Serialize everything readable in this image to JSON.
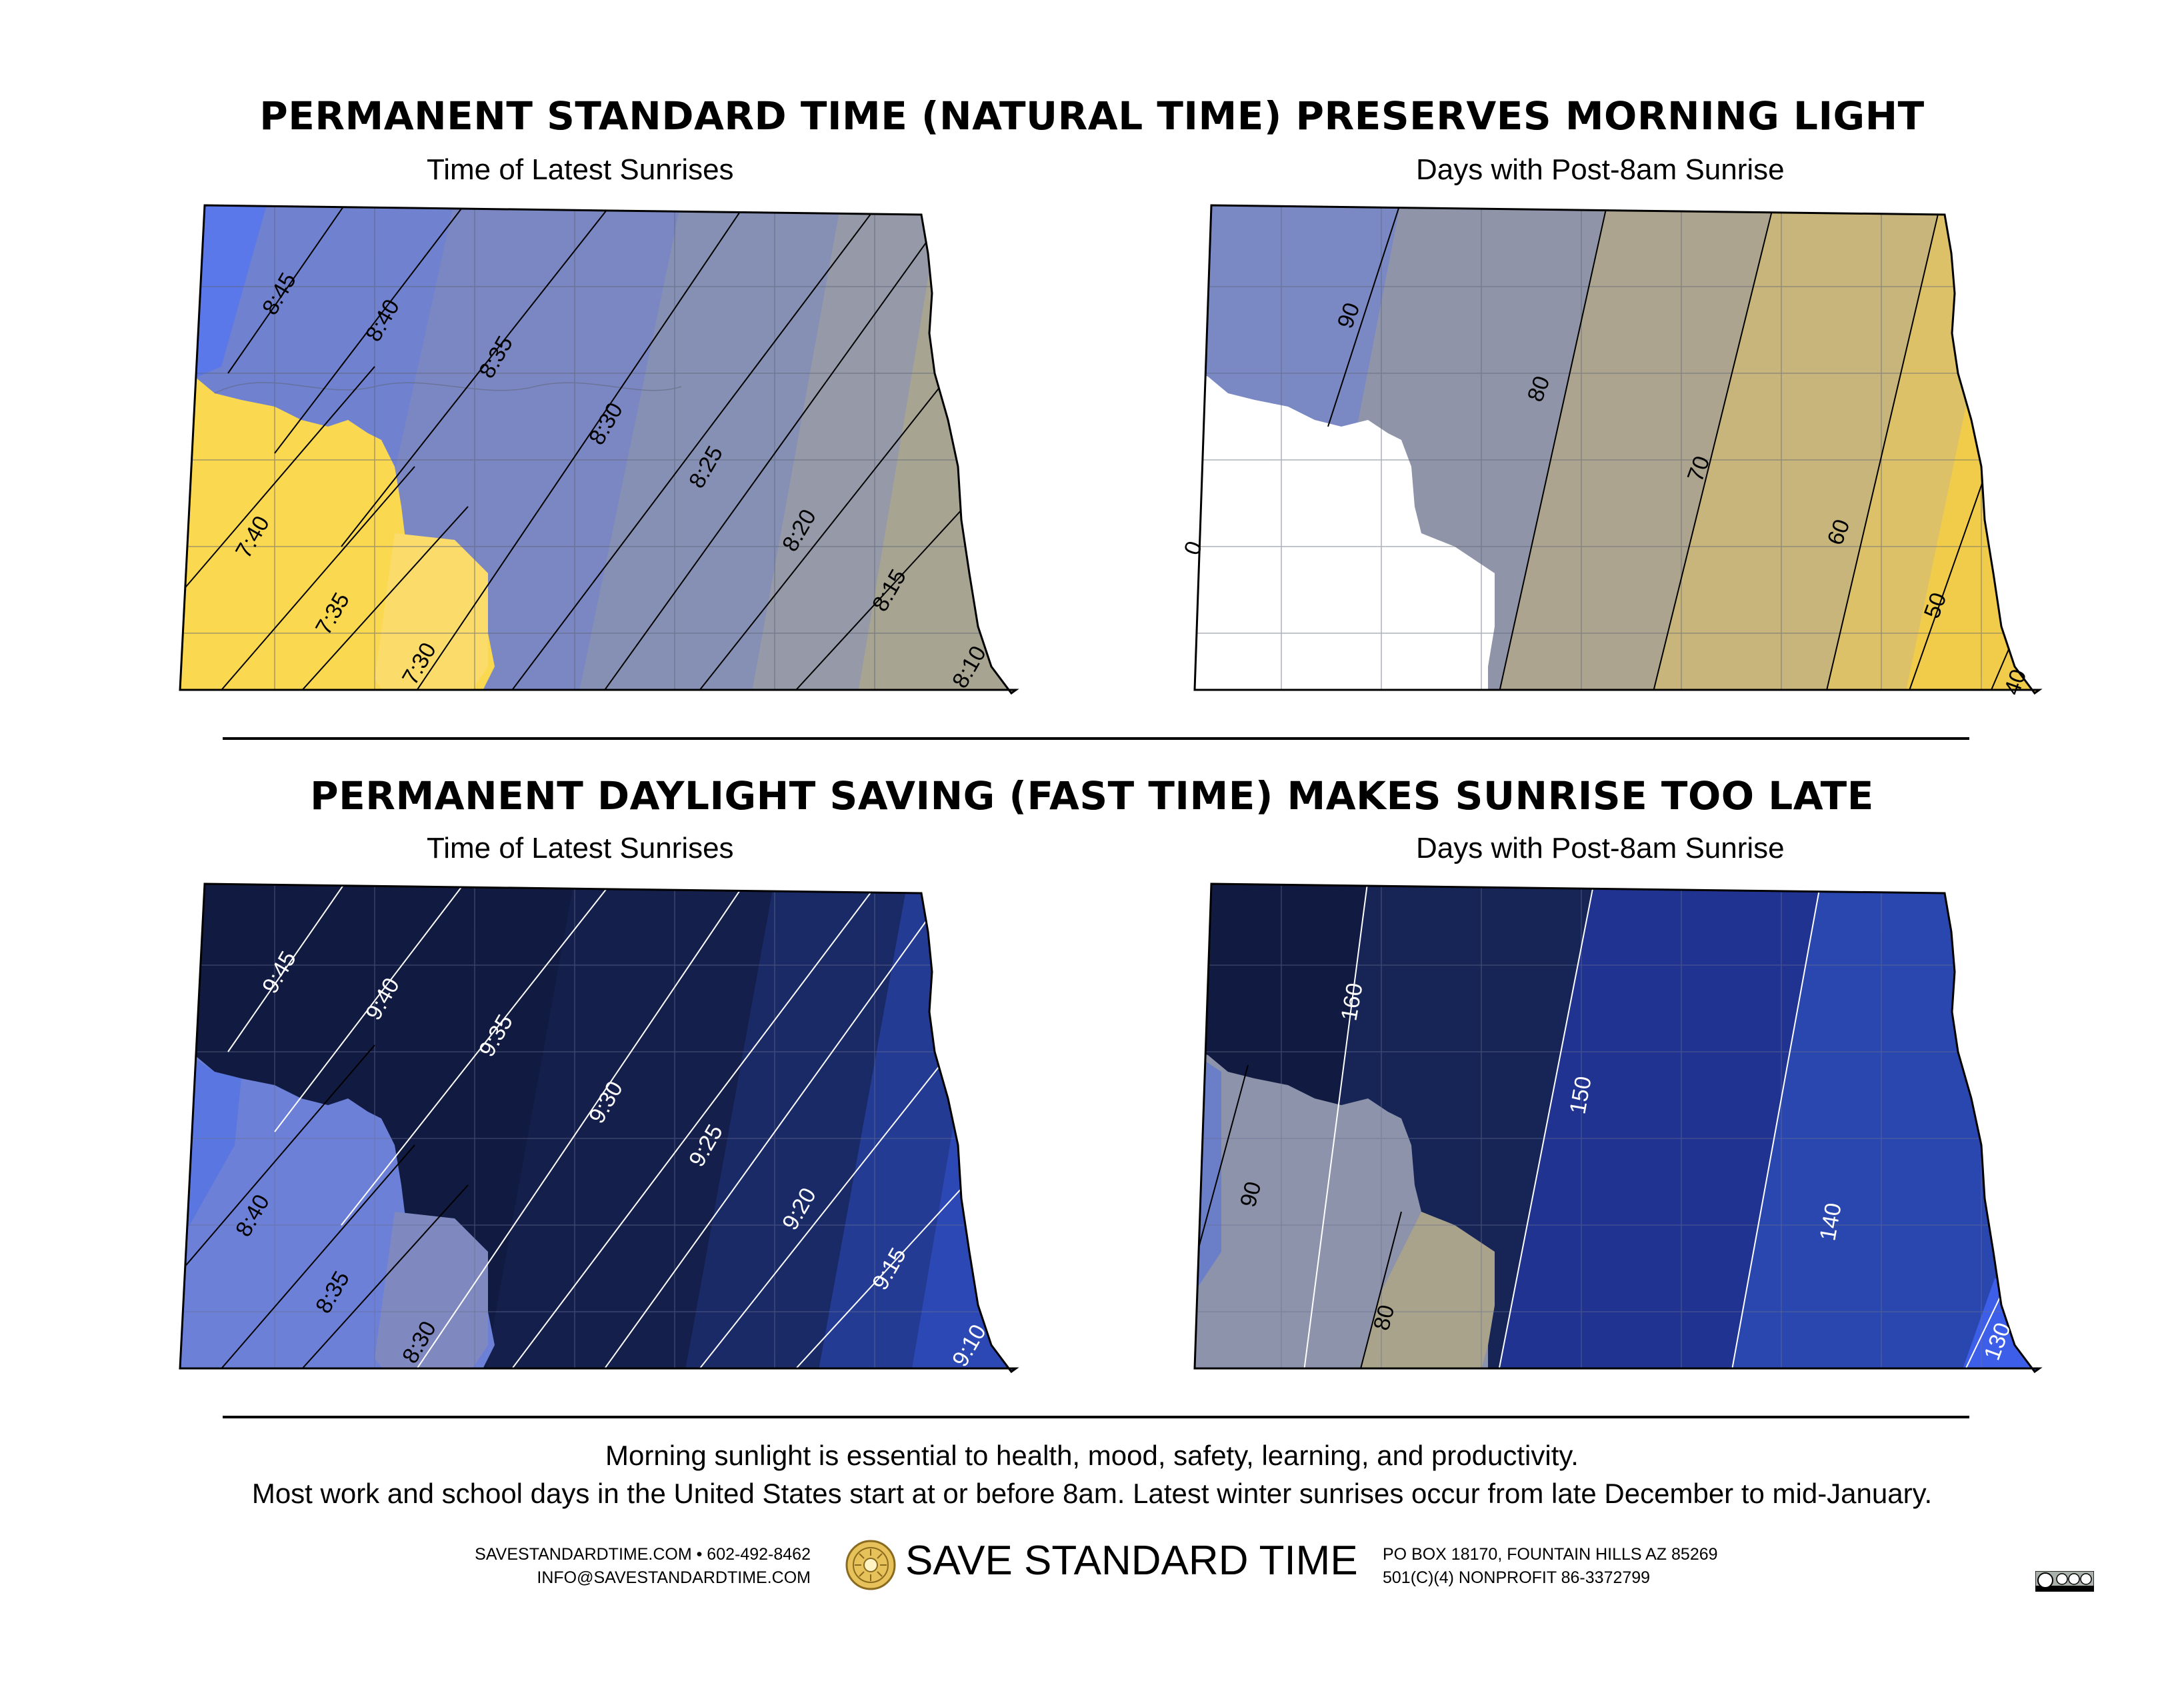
{
  "sections": [
    {
      "title": "PERMANENT STANDARD TIME (NATURAL TIME) PRESERVES MORNING LIGHT",
      "left_map": {
        "subtitle": "Time of Latest Sunrises",
        "contours": [
          "8:45",
          "8:40",
          "8:35",
          "8:30",
          "8:25",
          "8:20",
          "8:15",
          "8:10",
          "7:40",
          "7:35",
          "7:30"
        ]
      },
      "right_map": {
        "subtitle": "Days with Post-8am Sunrise",
        "contours": [
          "90",
          "80",
          "70",
          "60",
          "50",
          "40",
          "0"
        ]
      }
    },
    {
      "title": "PERMANENT DAYLIGHT SAVING (FAST TIME) MAKES SUNRISE TOO LATE",
      "left_map": {
        "subtitle": "Time of Latest Sunrises",
        "contours": [
          "9:45",
          "9:40",
          "9:35",
          "9:30",
          "9:25",
          "9:20",
          "9:15",
          "9:10",
          "8:40",
          "8:35",
          "8:30"
        ]
      },
      "right_map": {
        "subtitle": "Days with Post-8am Sunrise",
        "contours": [
          "160",
          "150",
          "140",
          "130",
          "90",
          "80"
        ]
      }
    }
  ],
  "footnote": {
    "line1": "Morning sunlight is essential to health, mood, safety, learning, and productivity.",
    "line2": "Most work and school days in the United States start at or before 8am. Latest winter sunrises occur from late December to mid-January."
  },
  "footer": {
    "contact_line1": "SAVESTANDARDTIME.COM • 602-492-8462",
    "contact_line2": "INFO@SAVESTANDARDTIME.COM",
    "brand": "SAVE STANDARD TIME",
    "address_line1": "PO BOX 18170, FOUNTAIN HILLS AZ 85269",
    "address_line2": "501(C)(4) NONPROFIT 86-3372799"
  },
  "colors": {
    "yellow": "#f9d54a",
    "gold_light": "#fbd965",
    "tan": "#aba58c",
    "grey_blue": "#8c94b0",
    "periwinkle": "#6a80d0",
    "bright_blue": "#4f6ff0",
    "navy": "#111a40",
    "deep_navy": "#172456",
    "royal": "#2a47b0",
    "white": "#ffffff"
  }
}
